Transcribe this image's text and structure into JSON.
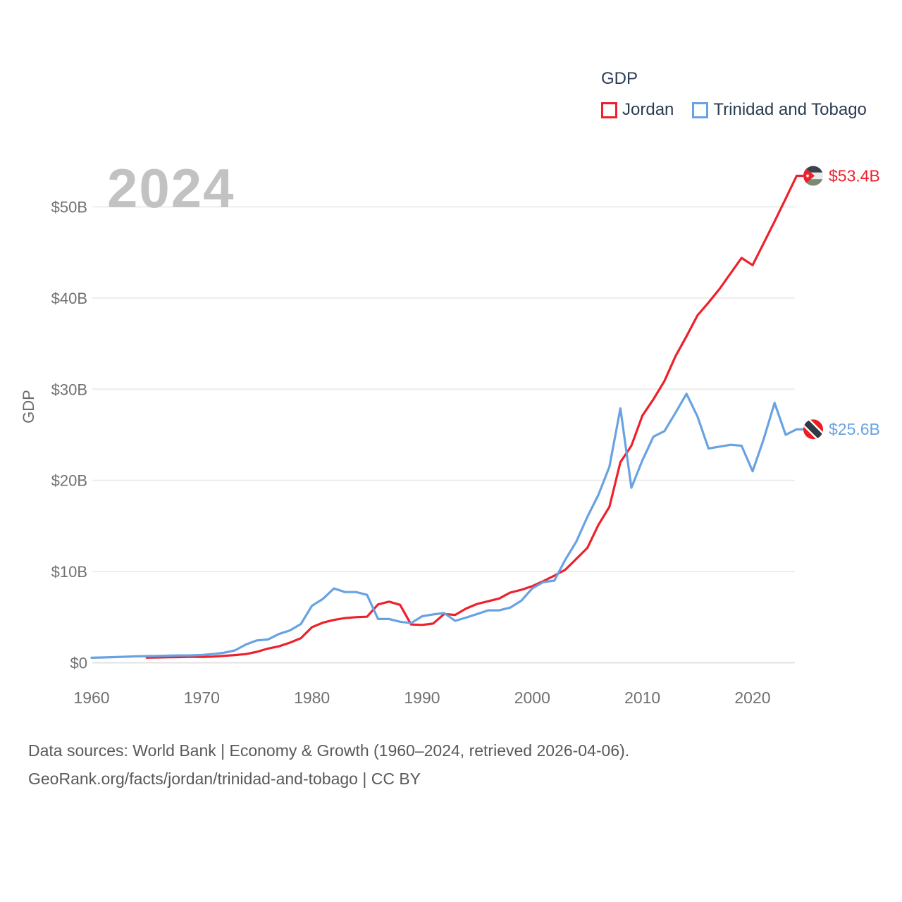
{
  "watermark": "2024",
  "legend": {
    "title": "GDP",
    "items": [
      {
        "label": "Jordan",
        "color": "#ee202c"
      },
      {
        "label": "Trinidad and Tobago",
        "color": "#68a2e2"
      }
    ]
  },
  "chart_data": {
    "type": "line",
    "title": "GDP",
    "ylabel": "GDP",
    "xlabel": "",
    "grid": "horizontal",
    "legend_position": "top-right",
    "ylim": [
      0,
      55
    ],
    "xlim": [
      1960,
      2026
    ],
    "yticks": [
      {
        "value": 0,
        "label": "$0"
      },
      {
        "value": 10,
        "label": "$10B"
      },
      {
        "value": 20,
        "label": "$20B"
      },
      {
        "value": 30,
        "label": "$30B"
      },
      {
        "value": 40,
        "label": "$40B"
      },
      {
        "value": 50,
        "label": "$50B"
      }
    ],
    "xticks": [
      1960,
      1970,
      1980,
      1990,
      2000,
      2010,
      2020
    ],
    "units": "billions USD",
    "series": [
      {
        "name": "Jordan",
        "color": "#ee202c",
        "start_year": 1965,
        "end_year": 2024,
        "end_label": "$53.4B",
        "flag": "jordan-flag-icon",
        "values": [
          0.56,
          0.58,
          0.6,
          0.62,
          0.66,
          0.63,
          0.67,
          0.76,
          0.84,
          0.95,
          1.2,
          1.55,
          1.8,
          2.2,
          2.7,
          3.9,
          4.4,
          4.7,
          4.9,
          5.0,
          5.05,
          6.4,
          6.7,
          6.35,
          4.2,
          4.15,
          4.3,
          5.35,
          5.25,
          5.95,
          6.45,
          6.75,
          7.05,
          7.7,
          8.0,
          8.4,
          8.95,
          9.55,
          10.2,
          11.4,
          12.6,
          15.1,
          17.1,
          22.0,
          23.8,
          27.1,
          28.9,
          30.9,
          33.6,
          35.8,
          38.1,
          39.5,
          41.0,
          42.7,
          44.4,
          43.6,
          46.0,
          48.4,
          50.9,
          53.4
        ]
      },
      {
        "name": "Trinidad and Tobago",
        "color": "#68a2e2",
        "start_year": 1960,
        "end_year": 2024,
        "end_label": "$25.6B",
        "flag": "trinidad-and-tobago-flag-icon",
        "values": [
          0.55,
          0.58,
          0.62,
          0.66,
          0.7,
          0.73,
          0.75,
          0.78,
          0.8,
          0.81,
          0.85,
          0.95,
          1.1,
          1.35,
          2.0,
          2.45,
          2.55,
          3.15,
          3.55,
          4.25,
          6.25,
          7.0,
          8.15,
          7.75,
          7.75,
          7.45,
          4.8,
          4.8,
          4.5,
          4.35,
          5.1,
          5.3,
          5.45,
          4.6,
          4.95,
          5.35,
          5.75,
          5.75,
          6.05,
          6.8,
          8.15,
          8.85,
          9.0,
          11.3,
          13.3,
          16.0,
          18.4,
          21.5,
          27.9,
          19.2,
          22.2,
          24.8,
          25.4,
          27.4,
          29.5,
          27.0,
          23.5,
          23.7,
          23.9,
          23.8,
          21.0,
          24.5,
          28.5,
          25.0,
          25.6
        ]
      }
    ]
  },
  "flag_colors": {
    "jordan": {
      "black_band": "#39434e",
      "white_band": "#e9eaea",
      "green_band": "#7b8872",
      "red_wedge": "#e8232d",
      "star": "#ffffff"
    },
    "trinidad_and_tobago": {
      "field": "#ee1c25",
      "stripe_black": "#323a43",
      "stripe_white": "#ffffff"
    }
  },
  "footer": {
    "line1": "Data sources: World Bank | Economy & Growth (1960–2024, retrieved 2026-04-06).",
    "line2": "GeoRank.org/facts/jordan/trinidad-and-tobago | CC BY"
  }
}
